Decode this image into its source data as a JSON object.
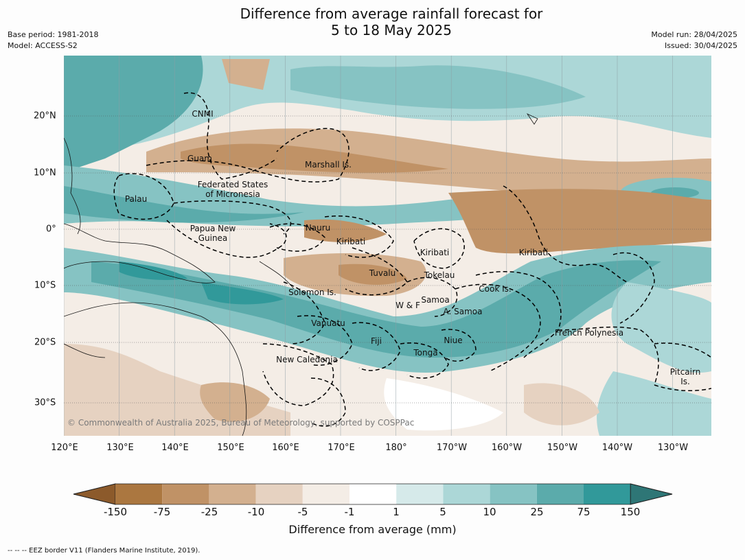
{
  "title_line1": "Difference from average rainfall forecast for",
  "title_line2": "5 to 18 May 2025",
  "base_period": "Base period: 1981-2018",
  "model": "Model: ACCESS-S2",
  "model_run": "Model run: 28/04/2025",
  "issued": "Issued: 30/04/2025",
  "lat_labels": [
    "20°N",
    "10°N",
    "0°",
    "10°S",
    "20°S",
    "30°S"
  ],
  "lon_labels": [
    "120°E",
    "130°E",
    "140°E",
    "150°E",
    "160°E",
    "170°E",
    "180°",
    "170°W",
    "160°W",
    "150°W",
    "140°W",
    "130°W"
  ],
  "regions": {
    "cnmi": "CNMI",
    "guam": "Guam",
    "marshall": "Marshall Is.",
    "fsm1": "Federated States",
    "fsm2": "of Micronesia",
    "palau": "Palau",
    "png1": "Papua New",
    "png2": "Guinea",
    "nauru": "Nauru",
    "kiribati_w": "Kiribati",
    "kiribati_c": "Kiribati",
    "kiribati_e": "Kiribati",
    "tuvalu": "Tuvalu",
    "tokelau": "Tokelau",
    "solomon": "Solomon Is.",
    "wf": "W & F",
    "samoa": "Samoa",
    "asamoa": "A. Samoa",
    "cook": "Cook Is.",
    "vanuatu": "Vanuatu",
    "fiji": "Fiji",
    "niue": "Niue",
    "tonga": "Tonga",
    "frpoly": "French Polynesia",
    "newcal": "New Caledonia",
    "pitcairn1": "Pitcairn",
    "pitcairn2": "Is."
  },
  "copyright": "© Commonwealth of Australia 2025, Bureau of Meteorology, supported by COSPPac",
  "colorbar": {
    "title": "Difference from average (mm)",
    "labels": [
      "-150",
      "-75",
      "-25",
      "-10",
      "-5",
      "-1",
      "1",
      "5",
      "10",
      "25",
      "75",
      "150"
    ],
    "colors": [
      "#8c5a2b",
      "#ab7740",
      "#c09266",
      "#d3b08f",
      "#e6d2c1",
      "#f4ede6",
      "#ffffff",
      "#d6eaea",
      "#acd7d7",
      "#86c3c3",
      "#5babab",
      "#31999a",
      "#2e7676"
    ]
  },
  "footnote": "-- -- -- EEZ border V11 (Flanders Marine Institute, 2019)."
}
